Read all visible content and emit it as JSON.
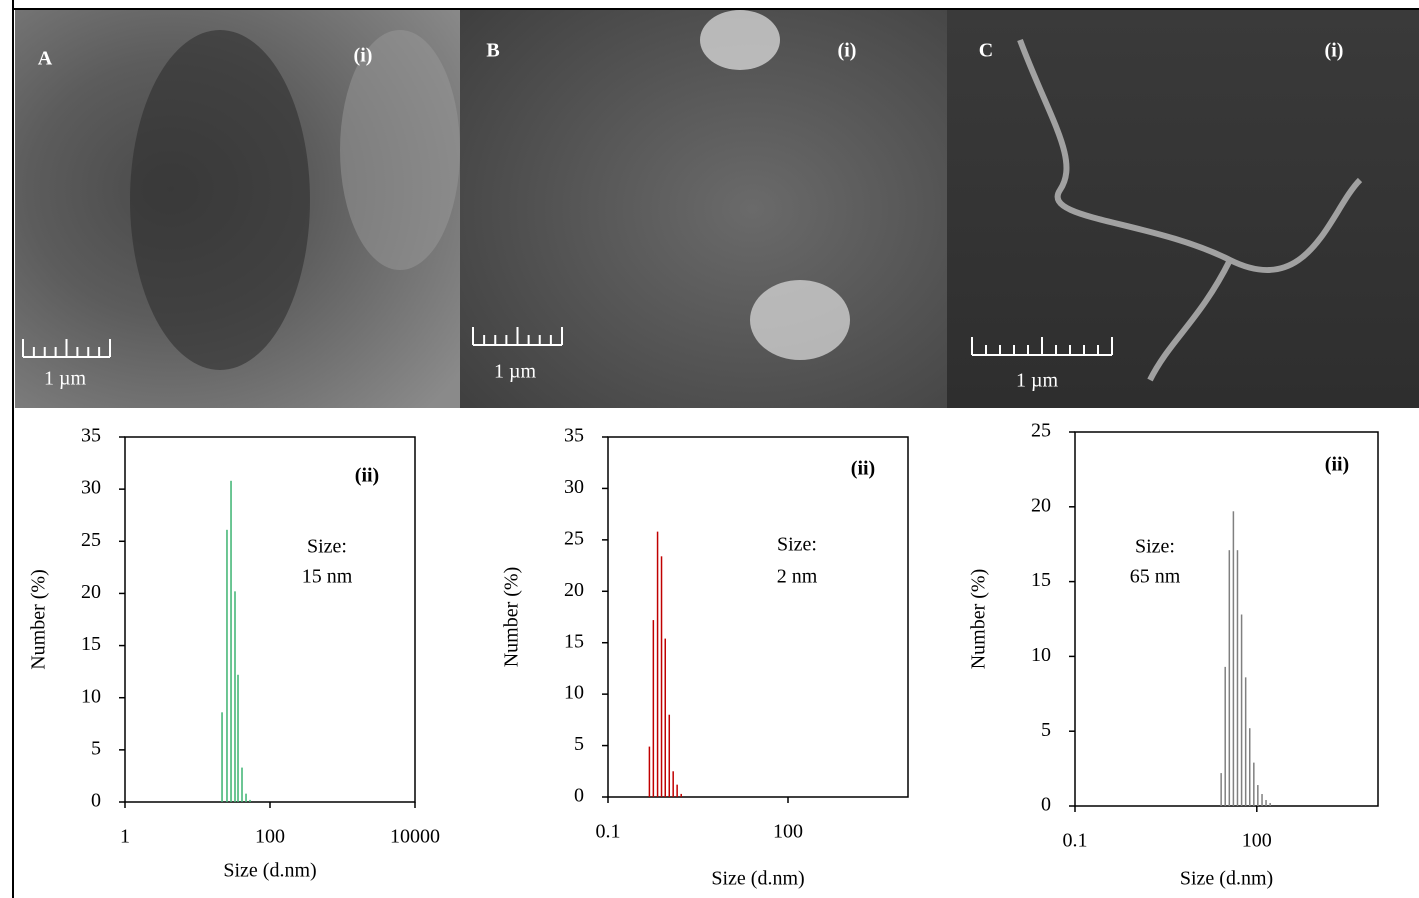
{
  "panels": [
    {
      "letter": "A",
      "tag": "(i)",
      "scale": "1 µm"
    },
    {
      "letter": "B",
      "tag": "(i)",
      "scale": "1 µm"
    },
    {
      "letter": "C",
      "tag": "(i)",
      "scale": "1 µm"
    }
  ],
  "chart_data": [
    {
      "type": "bar",
      "log_x": true,
      "color": "#3cb371",
      "x": [
        21.8,
        25.5,
        29.0,
        32.9,
        36.2,
        41.1,
        46.7,
        53
      ],
      "values": [
        8.6,
        26.1,
        30.8,
        20.2,
        12.2,
        3.3,
        0.8,
        0.2
      ],
      "xlim": [
        1,
        10000
      ],
      "xticks": [
        1,
        100,
        10000
      ],
      "ylim": [
        0,
        35
      ],
      "yticks": [
        0,
        5,
        10,
        15,
        20,
        25,
        30,
        35
      ],
      "xlabel": "Size (d.nm)",
      "ylabel": "Number (%)",
      "annotations": [
        "(ii)",
        "Size:",
        "15 nm"
      ]
    },
    {
      "type": "bar",
      "log_x": true,
      "color": "#c00000",
      "x": [
        0.49,
        0.57,
        0.67,
        0.78,
        0.9,
        1.05,
        1.22,
        1.42,
        1.66
      ],
      "values": [
        4.9,
        17.2,
        25.8,
        23.4,
        15.4,
        8.0,
        2.5,
        1.2,
        0.3
      ],
      "xlim": [
        0.1,
        10000
      ],
      "xticks": [
        0.1,
        100
      ],
      "ylim": [
        0,
        35
      ],
      "yticks": [
        0,
        5,
        10,
        15,
        20,
        25,
        30,
        35
      ],
      "xlabel": "Size (d.nm)",
      "ylabel": "Number (%)",
      "annotations": [
        "(ii)",
        "Size:",
        "2 nm"
      ]
    },
    {
      "type": "bar",
      "log_x": true,
      "color": "#808080",
      "x": [
        25.8,
        30.1,
        35.2,
        41.1,
        48.0,
        56.1,
        65.5,
        76.5,
        89.3,
        104,
        122,
        142,
        166
      ],
      "values": [
        2.2,
        9.3,
        17.1,
        19.7,
        17.1,
        12.8,
        8.6,
        5.2,
        2.9,
        1.4,
        0.8,
        0.4,
        0.2
      ],
      "xlim": [
        0.1,
        10000
      ],
      "xticks": [
        0.1,
        100
      ],
      "ylim": [
        0,
        25
      ],
      "yticks": [
        0,
        5,
        10,
        15,
        20,
        25
      ],
      "xlabel": "Size (d.nm)",
      "ylabel": "Number (%)",
      "annotations": [
        "(ii)",
        "Size:",
        "65 nm"
      ]
    }
  ]
}
